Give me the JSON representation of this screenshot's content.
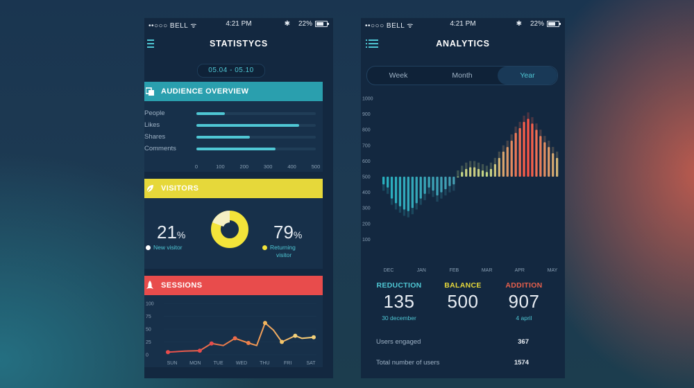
{
  "left": {
    "status": {
      "carrier": "••○○○ BELL ᯤ",
      "time": "4:21 PM",
      "bluetooth": "✱",
      "battery": "22%"
    },
    "title": "STATISTYCS",
    "date_range": "05.04 - 05.10",
    "audience": {
      "title": "AUDIENCE OVERVIEW",
      "color": "#2a9fae",
      "rows": [
        {
          "label": "People",
          "value": 120
        },
        {
          "label": "Likes",
          "value": 430
        },
        {
          "label": "Shares",
          "value": 225
        },
        {
          "label": "Comments",
          "value": 330
        }
      ],
      "max": 500,
      "ticks": [
        "0",
        "100",
        "200",
        "300",
        "400",
        "500"
      ]
    },
    "visitors": {
      "title": "VISITORS",
      "color": "#e6d83a",
      "new": {
        "value": "21",
        "unit": "%",
        "label": "New visitor"
      },
      "returning": {
        "value": "79",
        "unit": "%",
        "label": "Returning",
        "label2": "visitor"
      }
    },
    "sessions": {
      "title": "SESSIONS",
      "color": "#e84c4c",
      "y_ticks": [
        "100",
        "75",
        "50",
        "25",
        "0"
      ],
      "days": [
        "SUN",
        "MON",
        "TUE",
        "WED",
        "THU",
        "FRI",
        "SAT"
      ]
    }
  },
  "right": {
    "status": {
      "carrier": "••○○○ BELL ᯤ",
      "time": "4:21 PM",
      "bluetooth": "✱",
      "battery": "22%"
    },
    "title": "ANALYTICS",
    "tabs": {
      "week": "Week",
      "month": "Month",
      "year": "Year"
    },
    "stats": {
      "reduction": {
        "label": "REDUCTION",
        "value": "135",
        "sub": "30 december",
        "color": "#4fc7d4"
      },
      "balance": {
        "label": "BALANCE",
        "value": "500",
        "sub": "",
        "color": "#e6d83a"
      },
      "addition": {
        "label": "ADDITION",
        "value": "907",
        "sub": "4 april",
        "color": "#e8604c"
      }
    },
    "summary": [
      {
        "label": "Users engaged",
        "value": "367"
      },
      {
        "label": "Total number of users",
        "value": "1574"
      }
    ]
  },
  "chart_data": [
    {
      "type": "line",
      "title": "SESSIONS",
      "categories": [
        "SUN",
        "MON",
        "TUE",
        "WED",
        "THU",
        "FRI",
        "SAT"
      ],
      "series": [
        {
          "name": "Sessions",
          "values": [
            [
              0.0,
              5
            ],
            [
              1.0,
              7
            ],
            [
              1.9,
              8
            ],
            [
              2.6,
              22
            ],
            [
              3.3,
              18
            ],
            [
              4.0,
              32
            ],
            [
              4.8,
              23
            ],
            [
              5.3,
              18
            ],
            [
              5.8,
              62
            ],
            [
              6.3,
              48
            ],
            [
              6.8,
              25
            ],
            [
              7.6,
              37
            ],
            [
              8.0,
              32
            ],
            [
              8.7,
              34
            ]
          ]
        }
      ],
      "ylim": [
        0,
        100
      ],
      "y_ticks": [
        "100",
        "75",
        "50",
        "25",
        "0"
      ]
    },
    {
      "type": "bar",
      "title": "ANALYTICS",
      "x_ticks": [
        "DEC",
        "JAN",
        "FEB",
        "MAR",
        "APR",
        "MAY"
      ],
      "ylim": [
        0,
        1000
      ],
      "y_ticks": [
        "1000",
        "900",
        "800",
        "700",
        "600",
        "500",
        "400",
        "300",
        "200",
        "100"
      ],
      "baseline": 500,
      "values": [
        450,
        430,
        360,
        330,
        310,
        290,
        280,
        300,
        330,
        360,
        390,
        430,
        410,
        380,
        400,
        420,
        440,
        450,
        500,
        530,
        550,
        560,
        560,
        550,
        540,
        530,
        550,
        580,
        620,
        660,
        690,
        730,
        780,
        810,
        850,
        870,
        840,
        800,
        760,
        720,
        690,
        650,
        620
      ]
    }
  ]
}
